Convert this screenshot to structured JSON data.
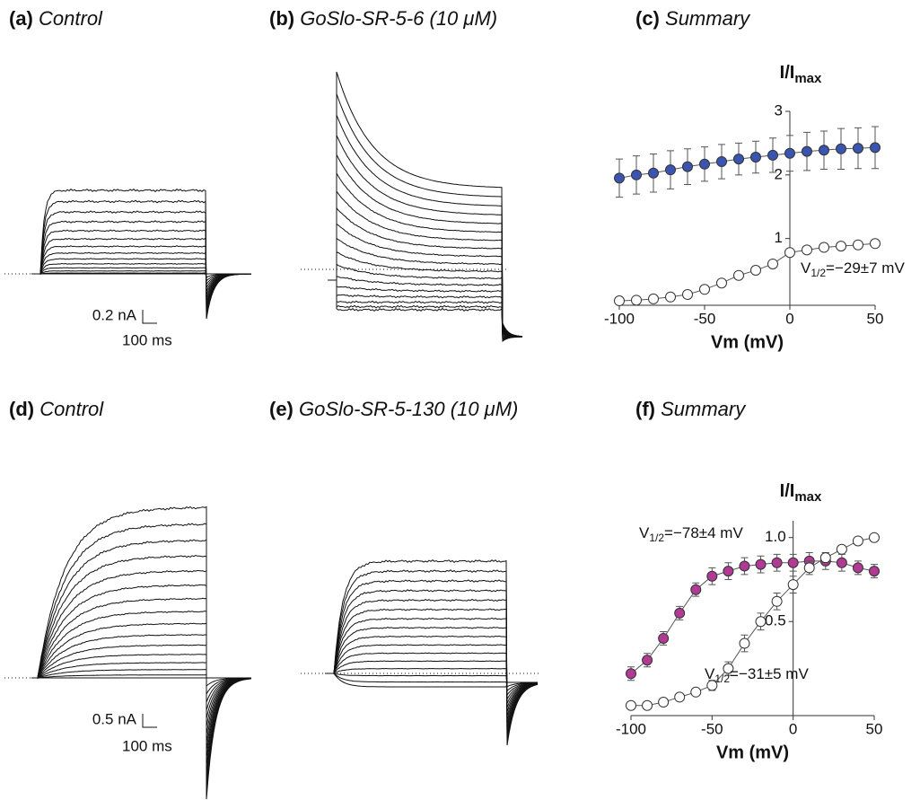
{
  "panels": [
    {
      "label": "(a)",
      "title": "Control",
      "scale_y": "0.2 nA",
      "scale_x": "100 ms"
    },
    {
      "label": "(b)",
      "title": "GoSlo-SR-5-6 (10 μM)"
    },
    {
      "label": "(d)",
      "title": "Control",
      "scale_y": "0.5 nA",
      "scale_x": "100 ms"
    },
    {
      "label": "(e)",
      "title": "GoSlo-SR-5-130 (10 μM)"
    }
  ],
  "chart_data": [
    {
      "type": "scatter",
      "panel_label": "(c)",
      "title": "Summary",
      "ylabel": {
        "main": "I/I",
        "sub": "max"
      },
      "xlabel": "Vm (mV)",
      "x": [
        -100,
        -90,
        -80,
        -70,
        -60,
        -50,
        -40,
        -30,
        -20,
        -10,
        0,
        10,
        20,
        30,
        40,
        50
      ],
      "xlim": [
        -100,
        50
      ],
      "xticks": [
        -100,
        -50,
        0,
        50
      ],
      "ylim": [
        -0.05,
        3
      ],
      "yticks": [
        1,
        2,
        3
      ],
      "series": [
        {
          "name": "GoSlo-SR-5-6",
          "color": "#3a55b0",
          "values": [
            1.95,
            2.0,
            2.03,
            2.08,
            2.13,
            2.17,
            2.21,
            2.25,
            2.28,
            2.31,
            2.34,
            2.37,
            2.39,
            2.41,
            2.42,
            2.43
          ],
          "errors": [
            0.3,
            0.3,
            0.3,
            0.3,
            0.28,
            0.27,
            0.27,
            0.25,
            0.25,
            0.27,
            0.28,
            0.3,
            0.3,
            0.32,
            0.32,
            0.33
          ]
        },
        {
          "name": "Control",
          "color": "#ffffff",
          "values": [
            0.02,
            0.03,
            0.05,
            0.08,
            0.12,
            0.2,
            0.3,
            0.42,
            0.5,
            0.6,
            0.78,
            0.82,
            0.86,
            0.88,
            0.9,
            0.92
          ],
          "errors": [
            0.02,
            0.02,
            0.02,
            0.03,
            0.03,
            0.05,
            0.06,
            0.06,
            0.06,
            0.05,
            0.05,
            0.04,
            0.03,
            0.03,
            0.02,
            0.02
          ]
        }
      ],
      "annotations": [
        {
          "prefix": "V",
          "sub": "1/2",
          "text": "=−29±7 mV"
        }
      ]
    },
    {
      "type": "scatter",
      "panel_label": "(f)",
      "title": "Summary",
      "ylabel": {
        "main": "I/I",
        "sub": "max"
      },
      "xlabel": "Vm (mV)",
      "x": [
        -100,
        -90,
        -80,
        -70,
        -60,
        -50,
        -40,
        -30,
        -20,
        -10,
        0,
        10,
        20,
        30,
        40,
        50
      ],
      "xlim": [
        -100,
        50
      ],
      "xticks": [
        -100,
        -50,
        0,
        50
      ],
      "ylim": [
        -0.06,
        1.1
      ],
      "yticks": [
        {
          "value": 0.5,
          "label": "0.5"
        },
        {
          "value": 1,
          "label": "1.0"
        }
      ],
      "series": [
        {
          "name": "GoSlo-SR-5-130",
          "color": "#b03a94",
          "values": [
            0.19,
            0.27,
            0.4,
            0.55,
            0.69,
            0.77,
            0.8,
            0.83,
            0.84,
            0.85,
            0.85,
            0.86,
            0.86,
            0.85,
            0.82,
            0.8
          ],
          "errors": [
            0.04,
            0.04,
            0.04,
            0.04,
            0.04,
            0.05,
            0.05,
            0.05,
            0.05,
            0.05,
            0.05,
            0.05,
            0.05,
            0.05,
            0.04,
            0.04
          ]
        },
        {
          "name": "Control",
          "color": "#ffffff",
          "values": [
            0.0,
            0.0,
            0.02,
            0.05,
            0.08,
            0.12,
            0.22,
            0.37,
            0.5,
            0.62,
            0.72,
            0.82,
            0.88,
            0.93,
            0.98,
            1.0
          ],
          "errors": [
            0.01,
            0.01,
            0.01,
            0.02,
            0.02,
            0.03,
            0.04,
            0.05,
            0.05,
            0.05,
            0.05,
            0.04,
            0.03,
            0.02,
            0.02,
            0.01
          ]
        }
      ],
      "annotations": [
        {
          "prefix": "V",
          "sub": "1/2",
          "text": "=−78±4 mV"
        },
        {
          "prefix": "V",
          "sub": "1/2",
          "text": "=−31±5 mV"
        }
      ]
    }
  ]
}
